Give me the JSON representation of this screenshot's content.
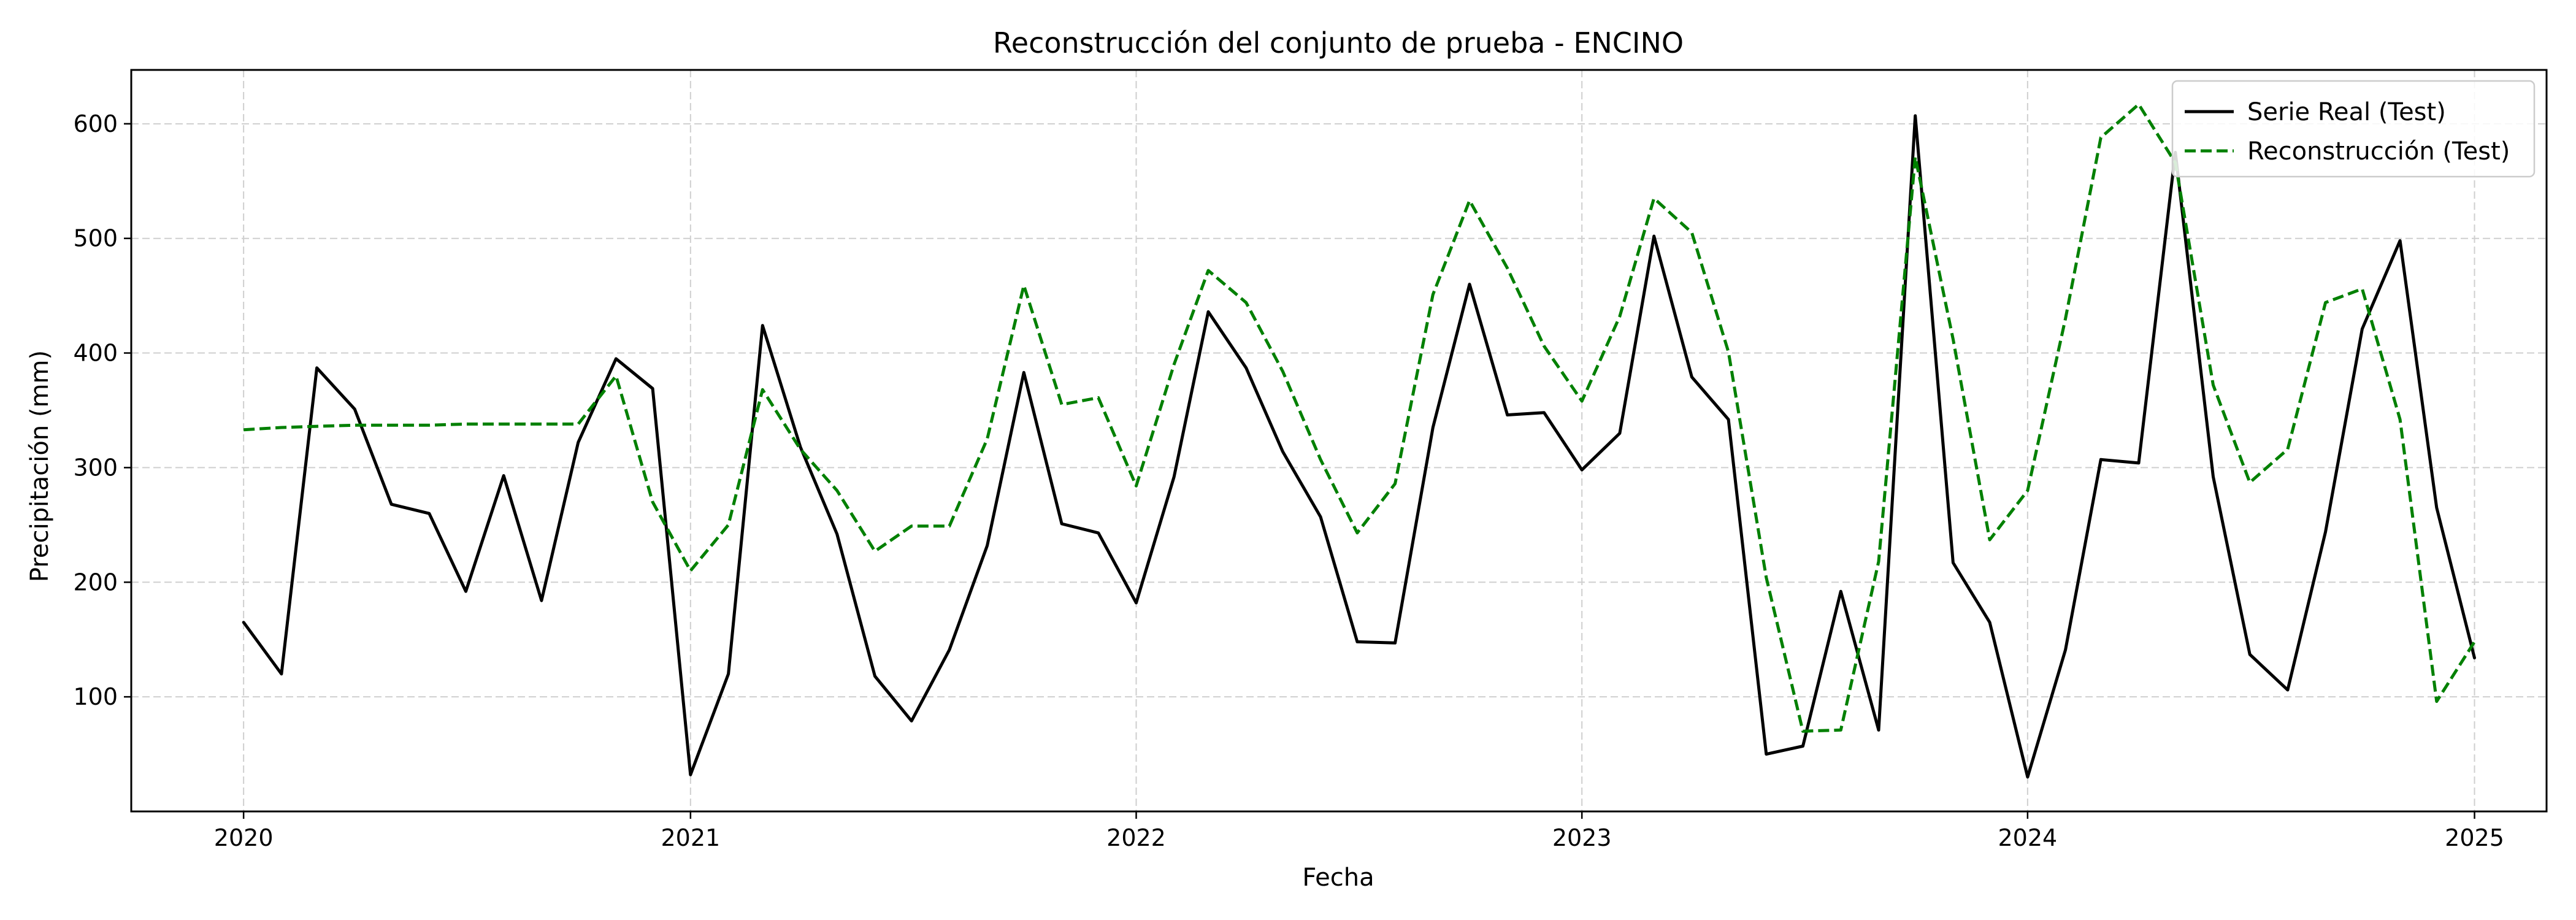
{
  "chart_data": {
    "type": "line",
    "title": "Reconstrucción del conjunto de prueba - ENCINO",
    "xlabel": "Fecha",
    "ylabel": "Precipitación (mm)",
    "xlim": [
      "2019-10-01",
      "2025-03-01"
    ],
    "ylim": [
      0,
      647
    ],
    "xticks": [
      "2020-01-01",
      "2021-01-01",
      "2022-01-01",
      "2023-01-01",
      "2024-01-01",
      "2025-01-01"
    ],
    "xtick_labels": [
      "2020",
      "2021",
      "2022",
      "2023",
      "2024",
      "2025"
    ],
    "yticks": [
      100,
      200,
      300,
      400,
      500,
      600
    ],
    "grid": true,
    "legend_position": "top-right",
    "x": [
      "2020-01-01",
      "2020-02-01",
      "2020-03-01",
      "2020-04-01",
      "2020-05-01",
      "2020-06-01",
      "2020-07-01",
      "2020-08-01",
      "2020-09-01",
      "2020-10-01",
      "2020-11-01",
      "2020-12-01",
      "2021-01-01",
      "2021-02-01",
      "2021-03-01",
      "2021-04-01",
      "2021-05-01",
      "2021-06-01",
      "2021-07-01",
      "2021-08-01",
      "2021-09-01",
      "2021-10-01",
      "2021-11-01",
      "2021-12-01",
      "2022-01-01",
      "2022-02-01",
      "2022-03-01",
      "2022-04-01",
      "2022-05-01",
      "2022-06-01",
      "2022-07-01",
      "2022-08-01",
      "2022-09-01",
      "2022-10-01",
      "2022-11-01",
      "2022-12-01",
      "2023-01-01",
      "2023-02-01",
      "2023-03-01",
      "2023-04-01",
      "2023-05-01",
      "2023-06-01",
      "2023-07-01",
      "2023-08-01",
      "2023-09-01",
      "2023-10-01",
      "2023-11-01",
      "2023-12-01",
      "2024-01-01",
      "2024-02-01",
      "2024-03-01",
      "2024-04-01",
      "2024-05-01",
      "2024-06-01",
      "2024-07-01",
      "2024-08-01",
      "2024-09-01",
      "2024-10-01",
      "2024-11-01",
      "2024-12-01",
      "2025-01-01"
    ],
    "series": [
      {
        "name": "Serie Real (Test)",
        "color": "#000000",
        "style": "solid",
        "values": [
          165,
          120,
          387,
          351,
          268,
          260,
          192,
          293,
          184,
          322,
          395,
          369,
          32,
          120,
          424,
          318,
          242,
          118,
          79,
          141,
          232,
          383,
          251,
          243,
          182,
          292,
          436,
          387,
          314,
          257,
          148,
          147,
          335,
          460,
          346,
          348,
          298,
          330,
          502,
          379,
          342,
          50,
          57,
          192,
          71,
          607,
          217,
          165,
          30,
          141,
          307,
          304,
          575,
          292,
          137,
          106,
          244,
          421,
          498,
          265,
          134
        ]
      },
      {
        "name": "Reconstrucción (Test)",
        "color": "#008000",
        "style": "dashed",
        "values": [
          333,
          335,
          336,
          337,
          337,
          337,
          338,
          338,
          338,
          338,
          380,
          270,
          210,
          250,
          368,
          316,
          280,
          227,
          249,
          249,
          325,
          459,
          355,
          361,
          284,
          390,
          472,
          444,
          384,
          307,
          243,
          286,
          451,
          533,
          474,
          406,
          358,
          432,
          535,
          505,
          401,
          204,
          70,
          71,
          218,
          571,
          412,
          237,
          280,
          430,
          588,
          617,
          566,
          372,
          287,
          316,
          444,
          456,
          342,
          96,
          148
        ]
      }
    ]
  }
}
